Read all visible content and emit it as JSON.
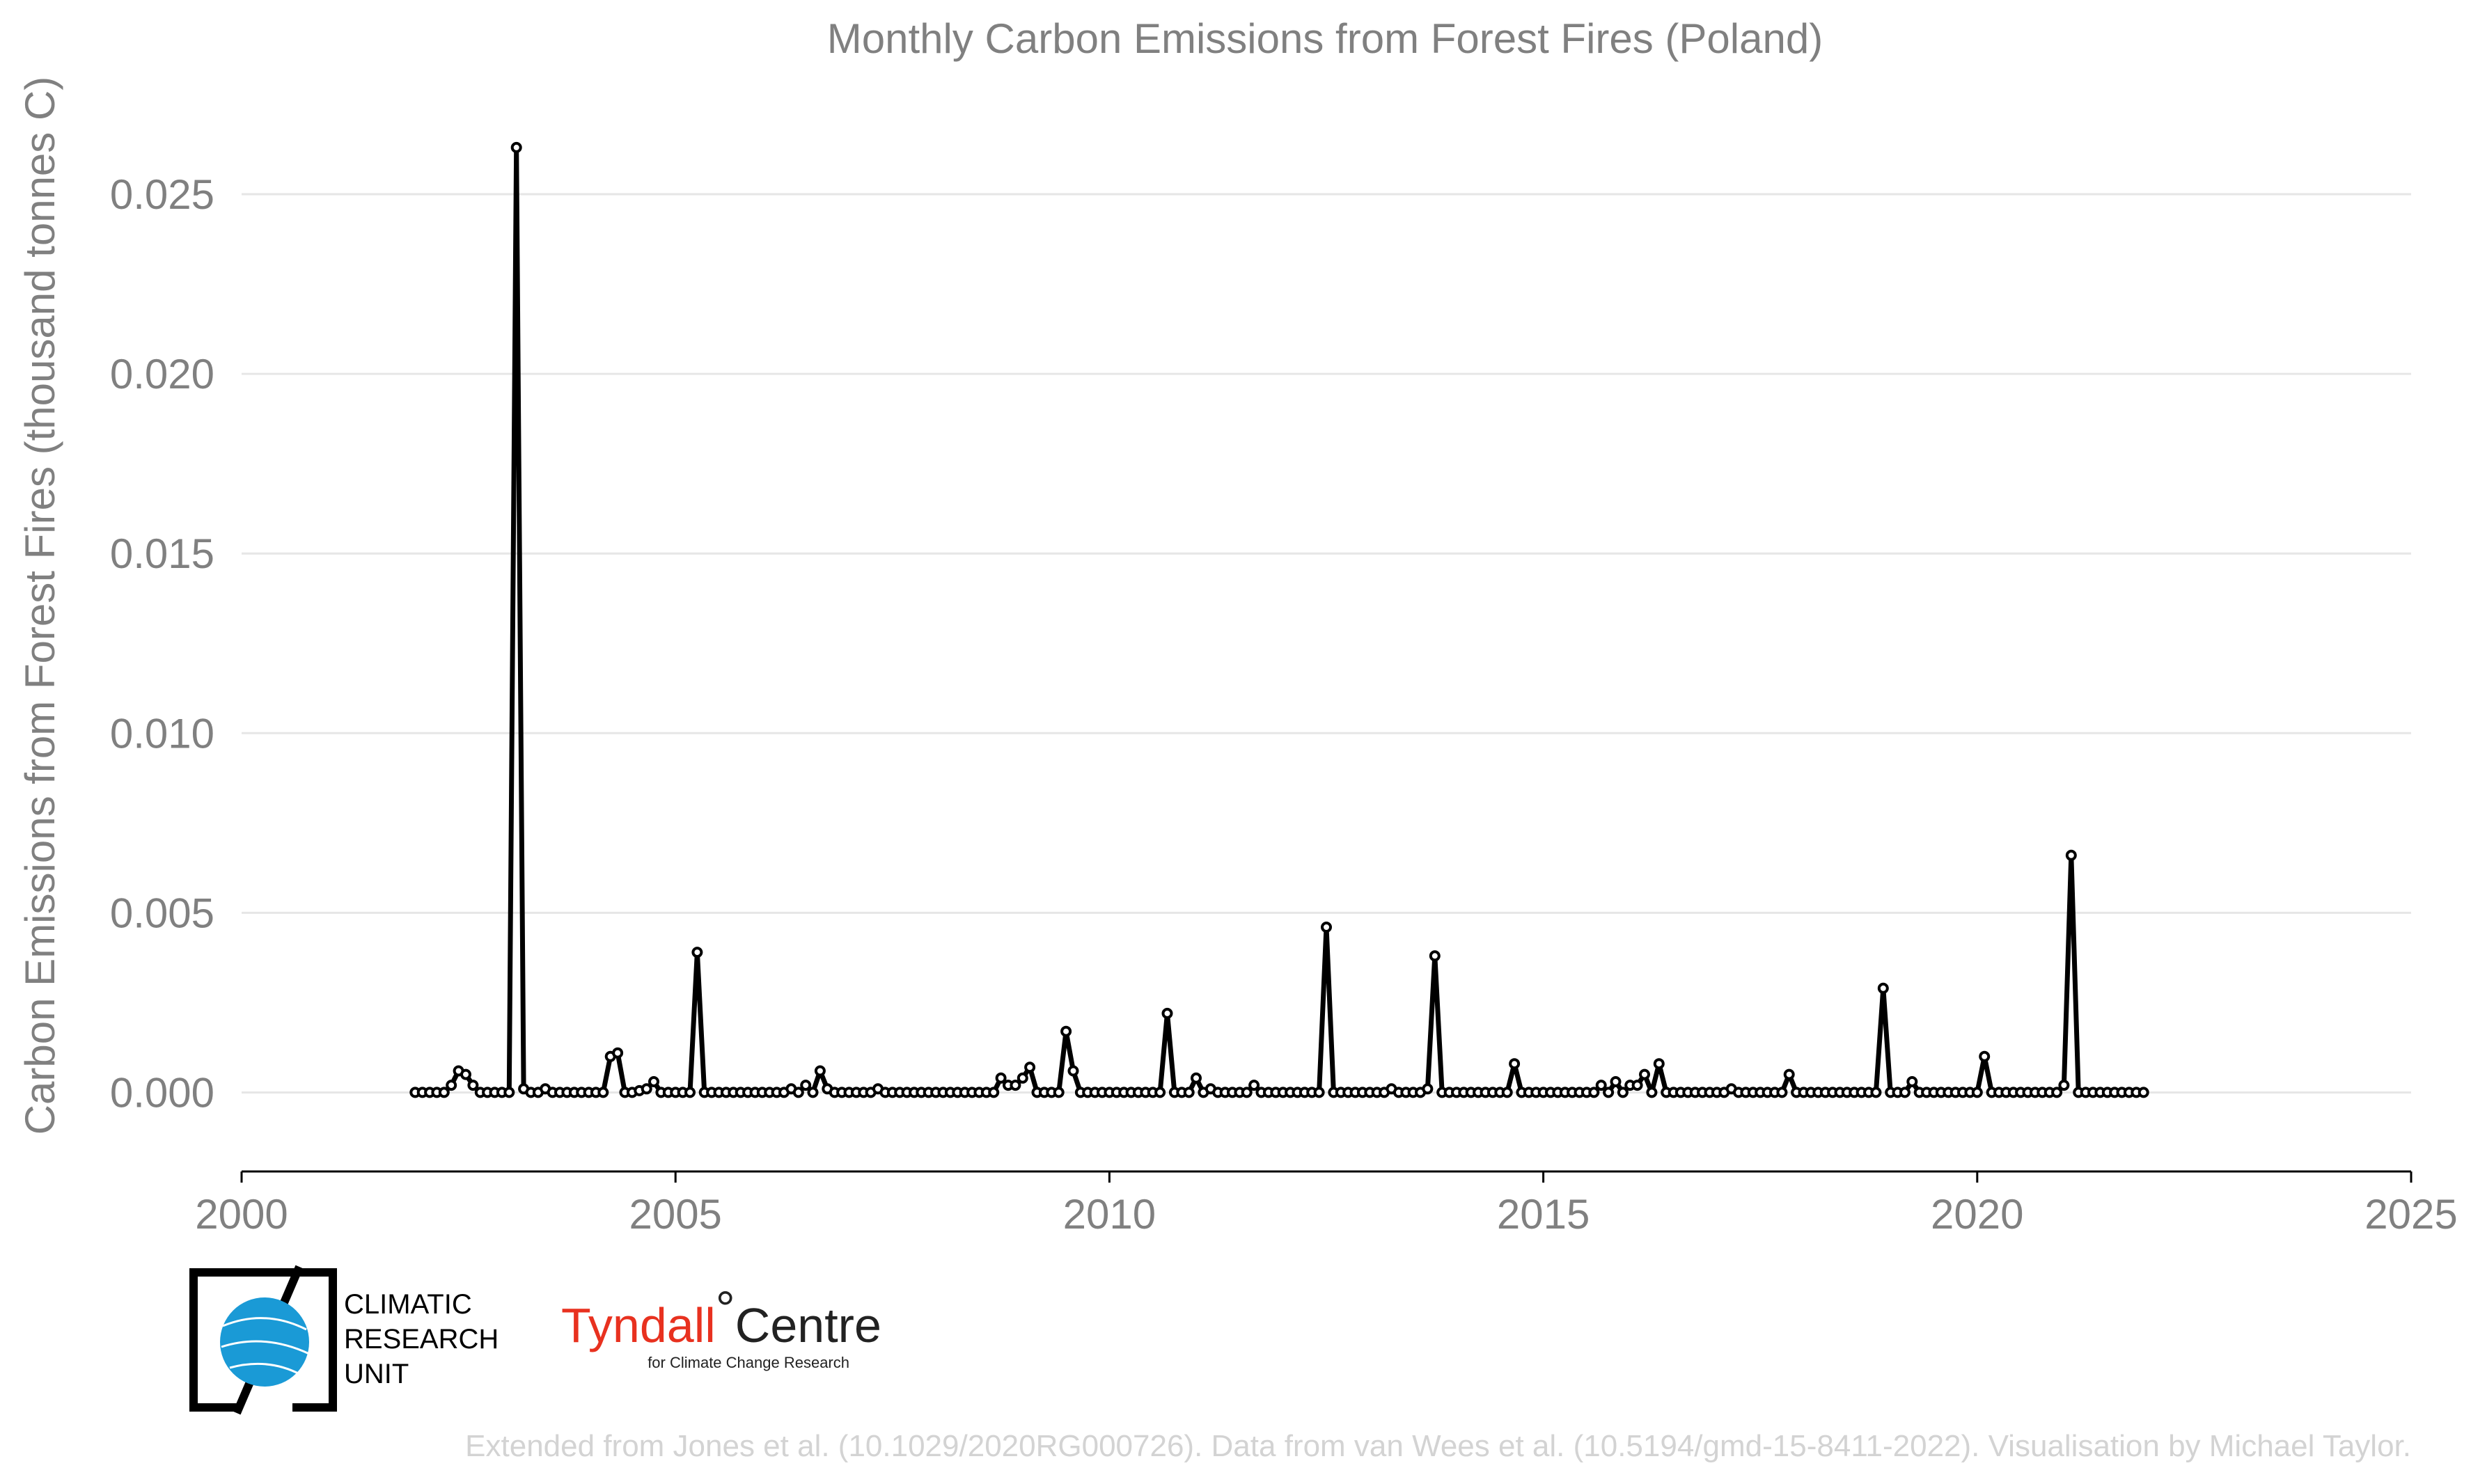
{
  "chart_data": {
    "type": "line",
    "title": "Monthly Carbon Emissions from Forest Fires (Poland)",
    "xlabel": "",
    "ylabel": "Carbon Emissions from Forest Fires (thousand tonnes C)",
    "xlim": [
      2000,
      2025
    ],
    "ylim": [
      -0.0022,
      0.0275
    ],
    "xticks": [
      "2000",
      "2005",
      "2010",
      "2015",
      "2020",
      "2025"
    ],
    "yticks": [
      "0.000",
      "0.005",
      "0.010",
      "0.015",
      "0.020",
      "0.025"
    ],
    "grid": "horizontal",
    "legend": "none",
    "series": [
      {
        "start": "2002-01",
        "values": [
          0,
          0,
          0,
          0,
          0,
          0.0002,
          0.0006,
          0.0005,
          0.0002,
          0,
          0,
          0,
          0,
          0,
          0.0263,
          0.0001,
          0,
          0,
          0.0001,
          0,
          0,
          0,
          0,
          0,
          0,
          0,
          0,
          0.001,
          0.0011,
          0,
          0,
          5e-05,
          0.0001,
          0.0003,
          0,
          0,
          0,
          0,
          0,
          0.0039,
          0,
          0,
          0,
          0,
          0,
          0,
          0,
          0,
          0,
          0,
          0,
          0,
          0.0001,
          0,
          0.0002,
          0,
          0.0006,
          0.0001,
          0,
          0,
          0,
          0,
          0,
          0,
          0.0001,
          0,
          0,
          0,
          0,
          0,
          0,
          0,
          0,
          0,
          0,
          0,
          0,
          0,
          0,
          0,
          0,
          0.0004,
          0.0002,
          0.0002,
          0.0004,
          0.0007,
          0,
          0,
          0,
          0,
          0.0017,
          0.0006,
          0,
          0,
          0,
          0,
          0,
          0,
          0,
          0,
          0,
          0,
          0,
          0,
          0.0022,
          0,
          0,
          0,
          0.0004,
          0,
          0.0001,
          0,
          0,
          0,
          0,
          0,
          0.0002,
          0,
          0,
          0,
          0,
          0,
          0,
          0,
          0,
          0,
          0.0046,
          0,
          0,
          0,
          0,
          0,
          0,
          0,
          0,
          0.0001,
          0,
          0,
          0,
          0,
          0.0001,
          0.0038,
          0,
          0,
          0,
          0,
          0,
          0,
          0,
          0,
          0,
          0,
          0.0008,
          0,
          0,
          0,
          0,
          0,
          0,
          0,
          0,
          0,
          0,
          0,
          0.0002,
          0,
          0.0003,
          0,
          0.0002,
          0.0002,
          0.0005,
          0,
          0.0008,
          0,
          0,
          0,
          0,
          0,
          0,
          0,
          0,
          0,
          0.0001,
          0,
          0,
          0,
          0,
          0,
          0,
          0,
          0.0005,
          0,
          0,
          0,
          0,
          0,
          0,
          0,
          0,
          0,
          0,
          0,
          0,
          0.0029,
          0,
          0,
          0,
          0.0003,
          0,
          0,
          0,
          0,
          0,
          0,
          0,
          0,
          0,
          0.001,
          0,
          0,
          0,
          0,
          0,
          0,
          0,
          0,
          0,
          0,
          0.0002,
          0.0066,
          0,
          0,
          0,
          0,
          0,
          0,
          0,
          0,
          0,
          0
        ]
      }
    ]
  },
  "logos": {
    "cru_lines": [
      "CLIMATIC",
      "RESEARCH",
      "UNIT"
    ],
    "tyndall_name": "Tyndall",
    "tyndall_degree": "°",
    "tyndall_centre": "Centre",
    "tyndall_sub": "for Climate Change Research"
  },
  "footer": "Extended from Jones et al. (10.1029/2020RG000726). Data from van Wees et al. (10.5194/gmd-15-8411-2022). Visualisation by Michael Taylor.",
  "colors": {
    "line": "#000000",
    "text": "#808080",
    "footer": "#d3d3d3",
    "cru_blue": "#1a9ad6",
    "tyndall_red": "#e8311f"
  }
}
